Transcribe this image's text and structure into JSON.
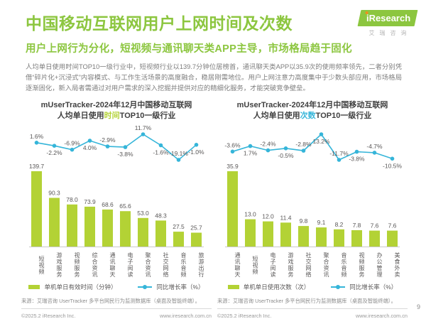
{
  "page": {
    "title": "中国移动互联网用户上网时间及次数",
    "subtitle": "用户上网行为分化，短视频与通讯聊天类APP主导，市场格局趋于固化",
    "body": "人均单日使用时间TOP10一级行业中，短视频行业以139.7分钟位居榜首，通讯聊天类APP以35.9次的使用频率领先，二者分别凭借“碎片化+沉浸式”内容模式、与工作生活场景的高度融合，稳居刚需地位。用户上网注意力高度集中于少数头部应用，市场格局逐渐固化，新入局者需通过对用户需求的深入挖掘并提供对应的精细化服务，才能突破竞争壁垒。",
    "page_number": "9"
  },
  "logo": {
    "brand_i": "i",
    "brand": "Research",
    "subtext": "艾瑞咨询"
  },
  "footer": {
    "source": "来源：艾瑞咨询 UserTracker 多平台网民行为监测数据库（桌面及智能终端）。",
    "copyright": "©2025.2 iResearch Inc.",
    "website": "www.iresearch.com.cn"
  },
  "colors": {
    "brand_green": "#8cc63f",
    "bar": "#b3d235",
    "line": "#35b5d9",
    "axis": "#c9c9c9",
    "label_gray": "#595757"
  },
  "chart_data": [
    {
      "type": "bar+line",
      "title_line1": "mUserTracker-2024年12月中国移动互联网",
      "title_line2_pre": "人均单日使用",
      "title_highlight": "时间",
      "title_line2_post": "TOP10一级行业",
      "highlight_color": "#b3d235",
      "categories": [
        "短视频",
        "游戏服务",
        "视频服务",
        "综合资讯",
        "通讯聊天",
        "电子阅读",
        "聚合资讯",
        "社交网络",
        "音乐音频",
        "旅游出行"
      ],
      "bar_values": [
        139.7,
        90.3,
        78.0,
        73.9,
        68.6,
        65.6,
        53.0,
        48.3,
        27.5,
        25.7
      ],
      "bar_labels": [
        "139.7",
        "90.3",
        "78.0",
        "73.9",
        "68.6",
        "65.6",
        "53.0",
        "48.3",
        "27.5",
        "25.7"
      ],
      "line_values": [
        1.6,
        -2.2,
        -6.9,
        4.0,
        -2.9,
        -3.8,
        11.7,
        -1.6,
        -19.1,
        -1.0
      ],
      "line_labels": [
        "1.6%",
        "-2.2%",
        "-6.9%",
        "4.0%",
        "-2.9%",
        "-3.8%",
        "11.7%",
        "-1.6%",
        "-19.1%",
        "-1.0%"
      ],
      "legend": [
        "单机单日有效时间（分钟）",
        "同比增长率（%）"
      ],
      "ylabel_bar": "分钟",
      "ylabel_line": "%",
      "grid": false,
      "legend_position": "bottom"
    },
    {
      "type": "bar+line",
      "title_line1": "mUserTracker-2024年12月中国移动互联网",
      "title_line2_pre": "人均单日使用",
      "title_highlight": "次数",
      "title_line2_post": "TOP10一级行业",
      "highlight_color": "#35b5d9",
      "categories": [
        "通讯聊天",
        "短视频",
        "电子阅读",
        "游戏服务",
        "社交网络",
        "聚合资讯",
        "音乐音频",
        "视频服务",
        "办公管理",
        "美食外卖"
      ],
      "bar_values": [
        35.9,
        13.0,
        12.0,
        11.4,
        9.8,
        9.1,
        8.2,
        7.8,
        7.6,
        7.6
      ],
      "bar_labels": [
        "35.9",
        "13.0",
        "12.0",
        "11.4",
        "9.8",
        "9.1",
        "8.2",
        "7.8",
        "7.6",
        "7.6"
      ],
      "line_values": [
        -3.6,
        1.7,
        -2.4,
        -0.5,
        -2.8,
        13.2,
        -11.7,
        -3.8,
        -4.7,
        -10.5
      ],
      "line_labels": [
        "-3.6%",
        "1.7%",
        "-2.4%",
        "-0.5%",
        "-2.8%",
        "13.2%",
        "-11.7%",
        "-3.8%",
        "-4.7%",
        "-10.5%"
      ],
      "legend": [
        "单机单日使用次数（次）",
        "同比增长率（%）"
      ],
      "ylabel_bar": "次",
      "ylabel_line": "%",
      "grid": false,
      "legend_position": "bottom"
    }
  ]
}
